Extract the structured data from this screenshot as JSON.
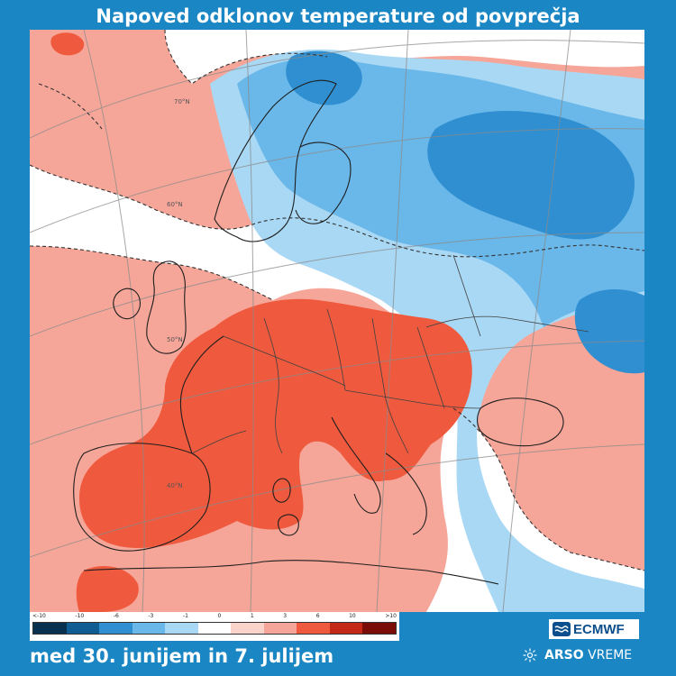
{
  "title": "Napoved odklonov temperature od povprečja",
  "date_range": "med 30. junijem in 7. julijem",
  "legend": {
    "labels": [
      "<-10",
      "-10",
      "-6",
      "-3",
      "-1",
      "0",
      "1",
      "3",
      "6",
      "10",
      ">10"
    ],
    "colors": [
      "#08304f",
      "#0f5d92",
      "#2f8fd0",
      "#6ab8ea",
      "#a9d8f4",
      "#ffffff",
      "#fad3cb",
      "#f6a699",
      "#ef5a3e",
      "#c42816",
      "#7a0e07"
    ]
  },
  "map_labels": {
    "lat70": "70°N",
    "lat60": "60°N",
    "lat50": "50°N",
    "lat40": "40°N"
  },
  "branding": {
    "ecmwf": "ECMWF",
    "arso_bold": "ARSO",
    "arso_rest": "VREME"
  },
  "icons": {
    "ecmwf_logo": "ecmwf-logo-icon",
    "arso_logo": "sun-icon"
  }
}
